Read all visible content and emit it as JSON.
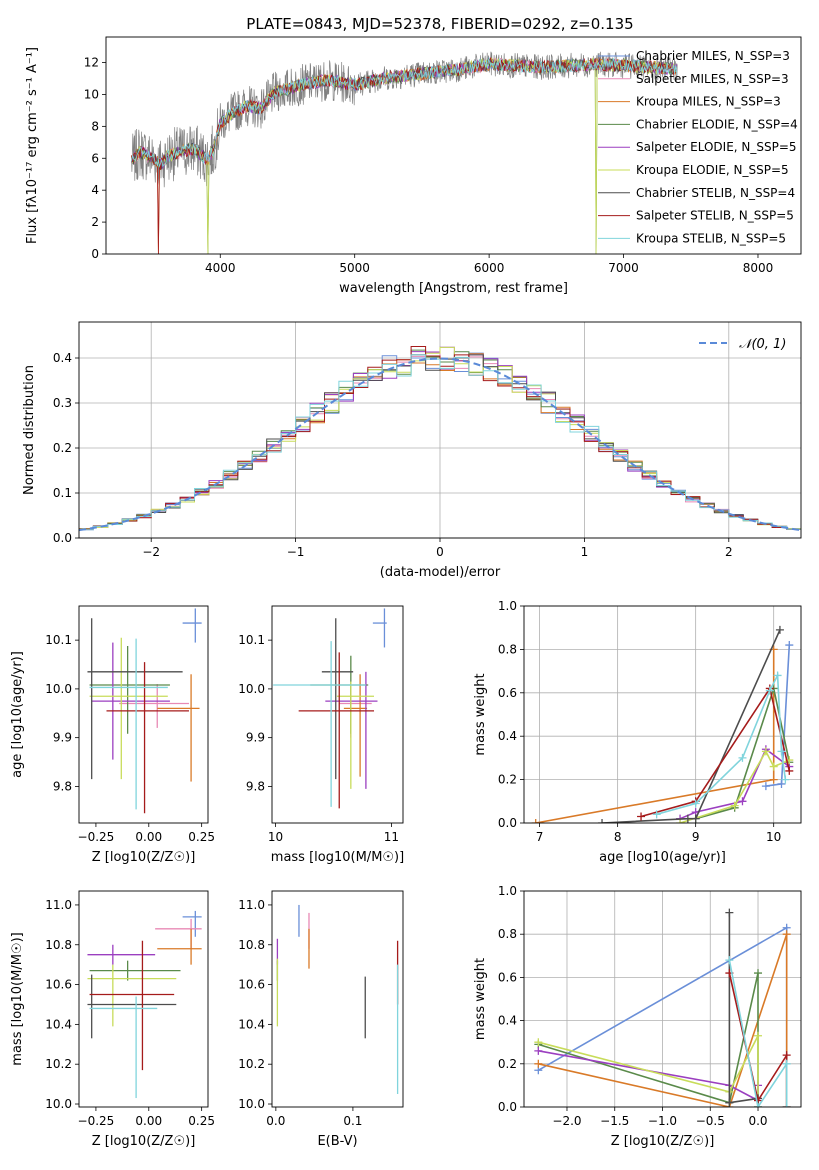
{
  "figure_title": "PLATE=0843, MJD=52378, FIBERID=0292, z=0.135",
  "colors": {
    "Chabrier MILES": "#6a8fd8",
    "Salpeter MILES": "#e889b5",
    "Kroupa MILES": "#d97a28",
    "Chabrier ELODIE": "#5a8a4a",
    "Salpeter ELODIE": "#9b3fc0",
    "Kroupa ELODIE": "#c8dc5a",
    "Chabrier STELIB": "#4d4d4d",
    "Salpeter STELIB": "#a51b1b",
    "Kroupa STELIB": "#80d4dc"
  },
  "chart_data": [
    {
      "id": "spectrum",
      "type": "line",
      "title": "PLATE=0843, MJD=52378, FIBERID=0292, z=0.135",
      "xlabel": "wavelength [Angstrom, rest frame]",
      "ylabel": "Flux [fλ10⁻¹⁷ erg cm⁻² s⁻¹ A⁻¹]",
      "xlim": [
        3150,
        8320
      ],
      "ylim": [
        0,
        13.6
      ],
      "xticks": [
        4000,
        5000,
        6000,
        7000,
        8000
      ],
      "yticks": [
        0,
        2,
        4,
        6,
        8,
        10,
        12
      ],
      "legend_position": "right",
      "legend": [
        "Chabrier MILES, N_SSP=3",
        "Salpeter MILES, N_SSP=3",
        "Kroupa MILES, N_SSP=3",
        "Chabrier ELODIE, N_SSP=4",
        "Salpeter ELODIE, N_SSP=5",
        "Kroupa ELODIE, N_SSP=5",
        "Chabrier STELIB, N_SSP=4",
        "Salpeter STELIB, N_SSP=5",
        "Kroupa STELIB, N_SSP=5"
      ],
      "data_series": {
        "wavelength": [
          3340,
          3400,
          3500,
          3560,
          3600,
          3700,
          3800,
          3900,
          3950,
          4000,
          4100,
          4200,
          4300,
          4400,
          4600,
          4800,
          5000,
          5200,
          5400,
          5600,
          5800,
          6000,
          6200,
          6400,
          6600,
          6800,
          7000,
          7200,
          7400
        ],
        "flux": [
          5.8,
          6.4,
          6.0,
          5.6,
          6.1,
          6.4,
          6.6,
          5.9,
          6.5,
          8.2,
          8.9,
          9.3,
          9.1,
          10.1,
          10.6,
          10.9,
          10.6,
          11.0,
          11.2,
          11.4,
          11.6,
          11.9,
          11.8,
          11.7,
          11.8,
          11.9,
          11.8,
          11.7,
          11.6
        ]
      },
      "grid": false
    },
    {
      "id": "residuals",
      "type": "histogram",
      "xlabel": "(data-model)/error",
      "ylabel": "Normed distribution",
      "xlim": [
        -2.5,
        2.5
      ],
      "ylim": [
        0,
        0.48
      ],
      "xticks": [
        -2,
        -1,
        0,
        1,
        2
      ],
      "yticks": [
        0.0,
        0.1,
        0.2,
        0.3,
        0.4
      ],
      "legend": [
        "𝒩(0, 1)"
      ],
      "legend_position": "top-right",
      "grid": true,
      "bin_width": 0.1
    },
    {
      "id": "age_vs_Z",
      "type": "errorbar",
      "xlabel": "Z [log10(Z/Z☉)]",
      "ylabel": "age  [log10(age/yr)]",
      "xlim": [
        -0.33,
        0.28
      ],
      "ylim": [
        9.725,
        10.17
      ],
      "xticks": [
        -0.25,
        0.0,
        0.25
      ],
      "xtick_labels": [
        "−0.25",
        "0.00",
        "0.25"
      ],
      "yticks": [
        9.8,
        9.9,
        10.0,
        10.1
      ],
      "points": [
        {
          "model": "Chabrier MILES",
          "x": 0.22,
          "y": 10.135,
          "xerr": [
            0.06,
            0.03
          ],
          "yerr": [
            0.04,
            0.03
          ]
        },
        {
          "model": "Salpeter MILES",
          "x": 0.04,
          "y": 9.97,
          "xerr": [
            0.18,
            0.15
          ],
          "yerr": [
            0.05,
            0.04
          ]
        },
        {
          "model": "Kroupa MILES",
          "x": 0.2,
          "y": 9.96,
          "xerr": [
            0.16,
            0.04
          ],
          "yerr": [
            0.15,
            0.07
          ]
        },
        {
          "model": "Chabrier ELODIE",
          "x": -0.1,
          "y": 10.008,
          "xerr": [
            0.18,
            0.2
          ],
          "yerr": [
            0.1,
            0.08
          ]
        },
        {
          "model": "Salpeter ELODIE",
          "x": -0.17,
          "y": 9.975,
          "xerr": [
            0.1,
            0.27
          ],
          "yerr": [
            0.12,
            0.12
          ]
        },
        {
          "model": "Kroupa ELODIE",
          "x": -0.13,
          "y": 9.985,
          "xerr": [
            0.15,
            0.22
          ],
          "yerr": [
            0.17,
            0.12
          ]
        },
        {
          "model": "Chabrier STELIB",
          "x": -0.27,
          "y": 10.035,
          "xerr": [
            0.02,
            0.43
          ],
          "yerr": [
            0.22,
            0.11
          ]
        },
        {
          "model": "Salpeter STELIB",
          "x": -0.02,
          "y": 9.955,
          "xerr": [
            0.18,
            0.21
          ],
          "yerr": [
            0.21,
            0.1
          ]
        },
        {
          "model": "Kroupa STELIB",
          "x": -0.06,
          "y": 10.003,
          "xerr": [
            0.22,
            0.15
          ],
          "yerr": [
            0.25,
            0.1
          ]
        }
      ]
    },
    {
      "id": "age_vs_mass",
      "type": "errorbar",
      "xlabel": "mass [log10(M/M☉)]",
      "ylabel": "",
      "xlim": [
        9.97,
        11.1
      ],
      "ylim": [
        9.725,
        10.17
      ],
      "xticks": [
        10,
        11
      ],
      "yticks": [
        9.8,
        9.9,
        10.0,
        10.1
      ],
      "points": [
        {
          "model": "Chabrier MILES",
          "x": 10.94,
          "y": 10.135,
          "xerr": [
            0.1,
            0.02
          ],
          "yerr": [
            0.05,
            0.03
          ]
        },
        {
          "model": "Salpeter MILES",
          "x": 10.65,
          "y": 9.97,
          "xerr": [
            0.1,
            0.18
          ],
          "yerr": [
            0.07,
            0.04
          ]
        },
        {
          "model": "Kroupa MILES",
          "x": 10.73,
          "y": 9.96,
          "xerr": [
            0.14,
            0.06
          ],
          "yerr": [
            0.14,
            0.07
          ]
        },
        {
          "model": "Chabrier ELODIE",
          "x": 10.65,
          "y": 10.008,
          "xerr": [
            0.35,
            0.15
          ],
          "yerr": [
            0.1,
            0.06
          ]
        },
        {
          "model": "Salpeter ELODIE",
          "x": 10.78,
          "y": 9.975,
          "xerr": [
            0.35,
            0.1
          ],
          "yerr": [
            0.18,
            0.06
          ]
        },
        {
          "model": "Kroupa ELODIE",
          "x": 10.65,
          "y": 9.985,
          "xerr": [
            0.12,
            0.2
          ],
          "yerr": [
            0.19,
            0.03
          ]
        },
        {
          "model": "Chabrier STELIB",
          "x": 10.52,
          "y": 10.035,
          "xerr": [
            0.12,
            0.15
          ],
          "yerr": [
            0.22,
            0.11
          ]
        },
        {
          "model": "Salpeter STELIB",
          "x": 10.55,
          "y": 9.955,
          "xerr": [
            0.35,
            0.3
          ],
          "yerr": [
            0.2,
            0.12
          ]
        },
        {
          "model": "Kroupa STELIB",
          "x": 10.48,
          "y": 10.008,
          "xerr": [
            0.5,
            0.3
          ],
          "yerr": [
            0.25,
            0.09
          ]
        }
      ]
    },
    {
      "id": "massweight_vs_age",
      "type": "line",
      "xlabel": "age  [log10(age/yr)]",
      "ylabel": "mass weight",
      "xlim": [
        6.8,
        10.35
      ],
      "ylim": [
        0,
        1.0
      ],
      "xticks": [
        7,
        8,
        9,
        10
      ],
      "yticks": [
        0.0,
        0.2,
        0.4,
        0.6,
        0.8,
        1.0
      ],
      "grid": true,
      "series": [
        {
          "name": "Chabrier MILES",
          "x": [
            10.2,
            10.1,
            9.9
          ],
          "y": [
            0.82,
            0.18,
            0.17
          ]
        },
        {
          "name": "Kroupa MILES",
          "x": [
            6.95,
            10.0,
            10.0
          ],
          "y": [
            0.0,
            0.2,
            0.8
          ]
        },
        {
          "name": "Chabrier ELODIE",
          "x": [
            9.0,
            9.5,
            10.0,
            10.2
          ],
          "y": [
            0.02,
            0.07,
            0.62,
            0.28
          ]
        },
        {
          "name": "Salpeter ELODIE",
          "x": [
            8.8,
            9.0,
            9.6,
            9.9,
            10.2
          ],
          "y": [
            0.02,
            0.05,
            0.1,
            0.34,
            0.26
          ]
        },
        {
          "name": "Kroupa ELODIE",
          "x": [
            8.8,
            9.5,
            9.9,
            10.0,
            10.2
          ],
          "y": [
            0.0,
            0.08,
            0.33,
            0.26,
            0.29
          ]
        },
        {
          "name": "Chabrier STELIB",
          "x": [
            7.8,
            8.9,
            9.0,
            10.08
          ],
          "y": [
            0.0,
            0.02,
            0.02,
            0.89
          ]
        },
        {
          "name": "Salpeter STELIB",
          "x": [
            8.3,
            9.0,
            9.95,
            10.2
          ],
          "y": [
            0.03,
            0.1,
            0.62,
            0.24
          ]
        },
        {
          "name": "Kroupa STELIB",
          "x": [
            8.5,
            9.0,
            9.6,
            9.95,
            10.05,
            10.1,
            10.15
          ],
          "y": [
            0.04,
            0.09,
            0.3,
            0.61,
            0.68,
            0.33,
            0.2
          ]
        }
      ]
    },
    {
      "id": "mass_vs_Z",
      "type": "errorbar",
      "xlabel": "Z [log10(Z/Z☉)]",
      "ylabel": "mass [log10(M/M☉)]",
      "xlim": [
        -0.33,
        0.28
      ],
      "ylim": [
        9.985,
        11.07
      ],
      "xticks": [
        -0.25,
        0.0,
        0.25
      ],
      "xtick_labels": [
        "−0.25",
        "0.00",
        "0.25"
      ],
      "yticks": [
        10.0,
        10.2,
        10.4,
        10.6,
        10.8,
        11.0
      ],
      "points": [
        {
          "model": "Chabrier MILES",
          "x": 0.22,
          "y": 10.94,
          "xerr": [
            0.06,
            0.03
          ],
          "yerr": [
            0.1,
            0.03
          ]
        },
        {
          "model": "Salpeter MILES",
          "x": 0.2,
          "y": 10.88,
          "xerr": [
            0.17,
            0.05
          ],
          "yerr": [
            0.1,
            0.05
          ]
        },
        {
          "model": "Kroupa MILES",
          "x": 0.2,
          "y": 10.78,
          "xerr": [
            0.16,
            0.05
          ],
          "yerr": [
            0.08,
            0.1
          ]
        },
        {
          "model": "Chabrier ELODIE",
          "x": -0.1,
          "y": 10.67,
          "xerr": [
            0.18,
            0.25
          ],
          "yerr": [
            0.05,
            0.05
          ]
        },
        {
          "model": "Salpeter ELODIE",
          "x": -0.17,
          "y": 10.75,
          "xerr": [
            0.12,
            0.2
          ],
          "yerr": [
            0.05,
            0.05
          ]
        },
        {
          "model": "Kroupa ELODIE",
          "x": -0.17,
          "y": 10.63,
          "xerr": [
            0.12,
            0.3
          ],
          "yerr": [
            0.24,
            0.07
          ]
        },
        {
          "model": "Chabrier STELIB",
          "x": -0.27,
          "y": 10.5,
          "xerr": [
            0.02,
            0.4
          ],
          "yerr": [
            0.17,
            0.15
          ]
        },
        {
          "model": "Salpeter STELIB",
          "x": -0.03,
          "y": 10.55,
          "xerr": [
            0.25,
            0.15
          ],
          "yerr": [
            0.38,
            0.27
          ]
        },
        {
          "model": "Kroupa STELIB",
          "x": -0.06,
          "y": 10.48,
          "xerr": [
            0.22,
            0.1
          ],
          "yerr": [
            0.45,
            0.06
          ]
        }
      ]
    },
    {
      "id": "mass_vs_ebv",
      "type": "errorbar",
      "xlabel": "E(B-V)",
      "ylabel": "",
      "xlim": [
        -0.005,
        0.165
      ],
      "ylim": [
        9.985,
        11.07
      ],
      "xticks": [
        0.0,
        0.1
      ],
      "xtick_labels": [
        "0.0",
        "0.1"
      ],
      "yticks": [
        10.0,
        10.2,
        10.4,
        10.6,
        10.8,
        11.0
      ],
      "points": [
        {
          "model": "Chabrier MILES",
          "x": 0.03,
          "y": 10.94,
          "yerr": [
            0.1,
            0.06
          ]
        },
        {
          "model": "Salpeter MILES",
          "x": 0.043,
          "y": 10.88,
          "yerr": [
            0.1,
            0.08
          ]
        },
        {
          "model": "Kroupa MILES",
          "x": 0.043,
          "y": 10.78,
          "yerr": [
            0.1,
            0.1
          ]
        },
        {
          "model": "Chabrier ELODIE",
          "x": 0.002,
          "y": 10.67,
          "yerr": [
            0.05,
            0.05
          ]
        },
        {
          "model": "Salpeter ELODIE",
          "x": 0.002,
          "y": 10.75,
          "yerr": [
            0.05,
            0.08
          ]
        },
        {
          "model": "Kroupa ELODIE",
          "x": 0.002,
          "y": 10.63,
          "yerr": [
            0.24,
            0.1
          ]
        },
        {
          "model": "Chabrier STELIB",
          "x": 0.116,
          "y": 10.5,
          "yerr": [
            0.17,
            0.14
          ]
        },
        {
          "model": "Salpeter STELIB",
          "x": 0.158,
          "y": 10.7,
          "yerr": [
            0.2,
            0.12
          ]
        },
        {
          "model": "Kroupa STELIB",
          "x": 0.158,
          "y": 10.4,
          "yerr": [
            0.35,
            0.3
          ]
        }
      ]
    },
    {
      "id": "massweight_vs_Z",
      "type": "line",
      "xlabel": "Z [log10(Z/Z☉)]",
      "ylabel": "mass weight",
      "xlim": [
        -2.45,
        0.45
      ],
      "ylim": [
        0,
        1.0
      ],
      "xticks": [
        -2.0,
        -1.5,
        -1.0,
        -0.5,
        0.0
      ],
      "xtick_labels": [
        "−2.0",
        "−1.5",
        "−1.0",
        "−0.5",
        "0.0"
      ],
      "yticks": [
        0.0,
        0.2,
        0.4,
        0.6,
        0.8,
        1.0
      ],
      "grid": true,
      "series": [
        {
          "name": "Chabrier MILES",
          "x": [
            -2.3,
            0.3,
            0.3
          ],
          "y": [
            0.17,
            0.83,
            0.0
          ]
        },
        {
          "name": "Kroupa MILES",
          "x": [
            -2.3,
            -0.3,
            0.3,
            0.3
          ],
          "y": [
            0.2,
            0.0,
            0.8,
            0.0
          ]
        },
        {
          "name": "Chabrier ELODIE",
          "x": [
            -2.3,
            -0.3,
            0.0,
            0.0
          ],
          "y": [
            0.29,
            0.02,
            0.62,
            0.0
          ]
        },
        {
          "name": "Salpeter ELODIE",
          "x": [
            -2.3,
            -0.3,
            0.0,
            0.0
          ],
          "y": [
            0.26,
            0.1,
            0.03,
            0.1
          ]
        },
        {
          "name": "Kroupa ELODIE",
          "x": [
            -2.3,
            -0.3,
            0.0,
            0.0
          ],
          "y": [
            0.3,
            0.07,
            0.33,
            0.0
          ]
        },
        {
          "name": "Chabrier STELIB",
          "x": [
            -0.3,
            -0.3,
            0.0,
            0.0
          ],
          "y": [
            0.9,
            0.02,
            0.04,
            0.0
          ]
        },
        {
          "name": "Salpeter STELIB",
          "x": [
            -0.3,
            0.0,
            0.3,
            0.3
          ],
          "y": [
            0.62,
            0.03,
            0.24,
            0.0
          ]
        },
        {
          "name": "Kroupa STELIB",
          "x": [
            -0.3,
            0.0,
            0.3,
            0.3
          ],
          "y": [
            0.68,
            0.0,
            0.2,
            0.0
          ]
        }
      ]
    }
  ]
}
